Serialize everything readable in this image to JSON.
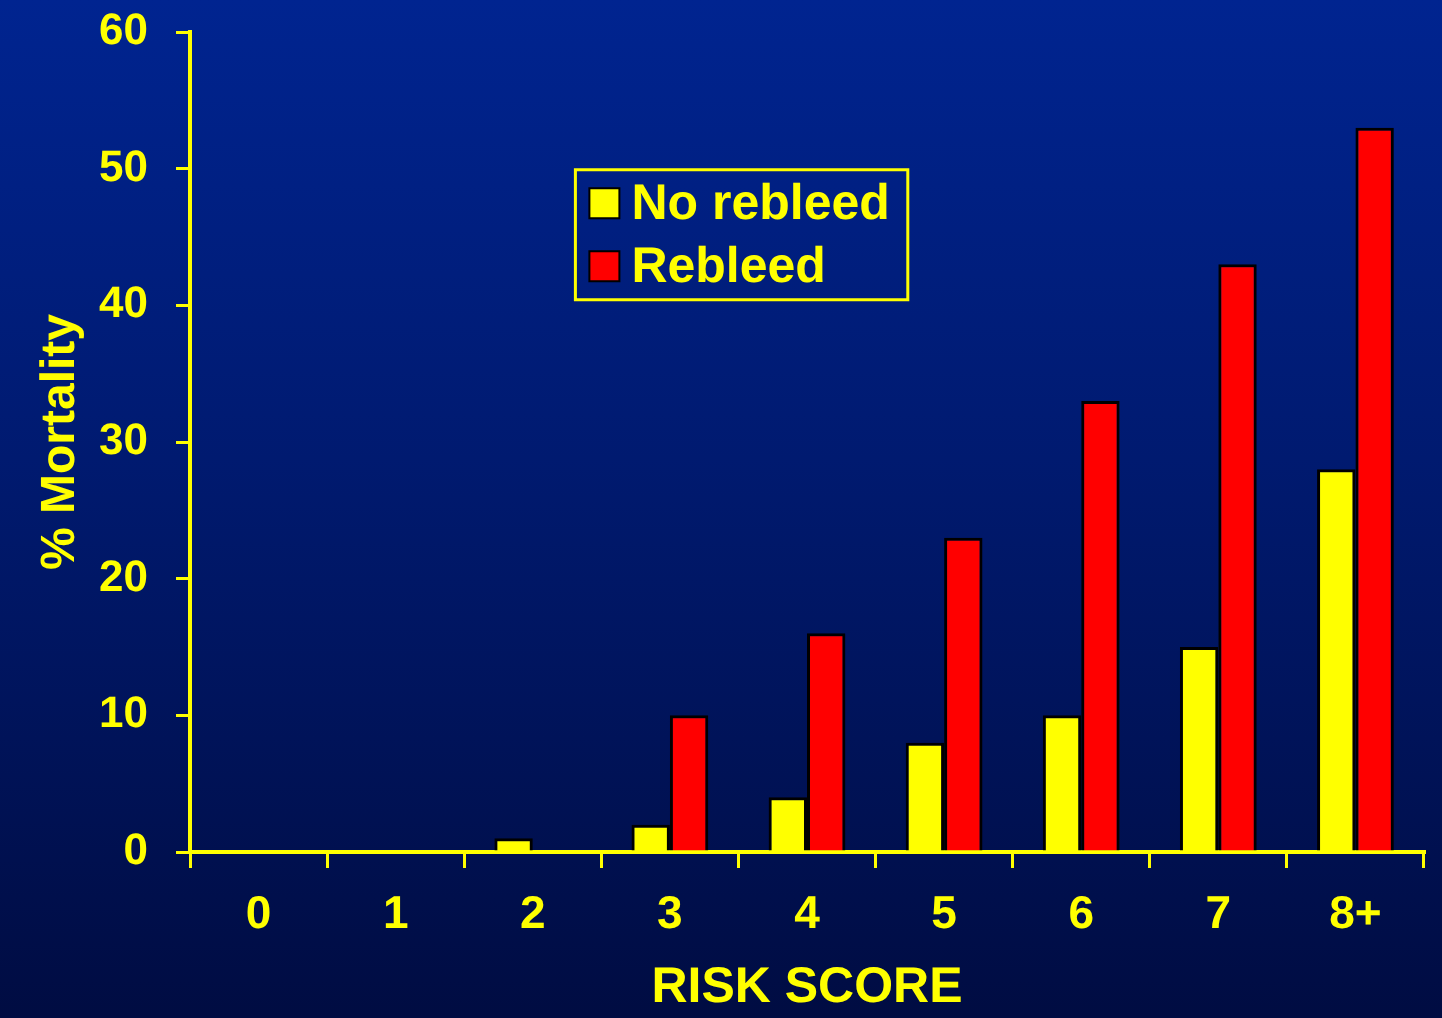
{
  "chart_data": {
    "type": "bar",
    "xlabel": "RISK SCORE",
    "ylabel": "% Mortality",
    "categories": [
      "0",
      "1",
      "2",
      "3",
      "4",
      "5",
      "6",
      "7",
      "8+"
    ],
    "series": [
      {
        "name": "No rebleed",
        "color": "#ffff00",
        "values": [
          0,
          0,
          1,
          2,
          4,
          8,
          10,
          15,
          28
        ]
      },
      {
        "name": "Rebleed",
        "color": "#ff0000",
        "values": [
          0,
          0,
          0,
          10,
          16,
          23,
          33,
          43,
          53
        ]
      }
    ],
    "ylim": [
      0,
      60
    ],
    "yticks": [
      0,
      10,
      20,
      30,
      40,
      50,
      60
    ],
    "grid": false,
    "legend": "top"
  }
}
